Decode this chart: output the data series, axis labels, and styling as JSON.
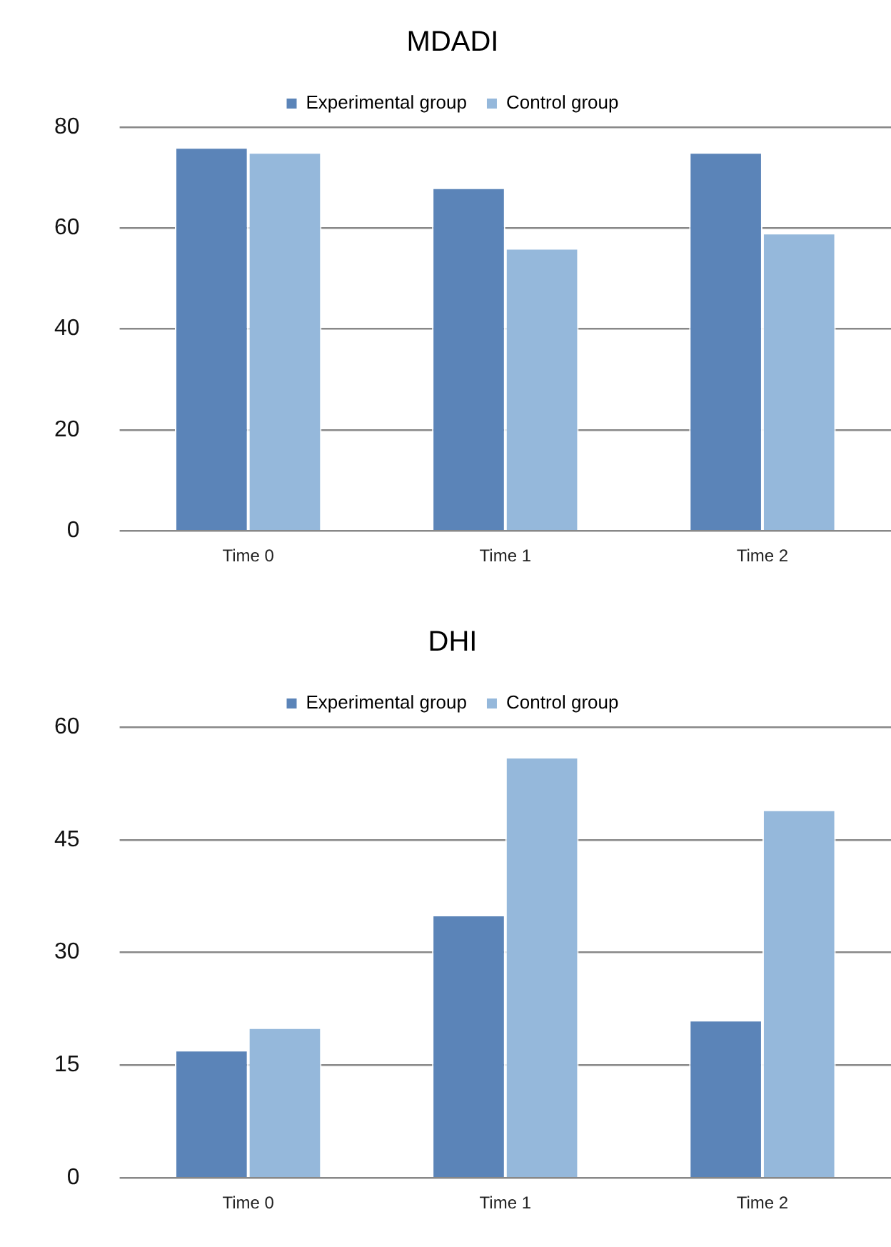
{
  "chart_data": [
    {
      "type": "bar",
      "title": "MDADI",
      "categories": [
        "Time 0",
        "Time 1",
        "Time 2"
      ],
      "series": [
        {
          "name": "Experimental group",
          "color": "#5b84b8",
          "values": [
            76,
            68,
            75
          ]
        },
        {
          "name": "Control group",
          "color": "#95b8db",
          "values": [
            75,
            56,
            59
          ]
        }
      ],
      "ylim": [
        0,
        80
      ],
      "yticks": [
        0,
        20,
        40,
        60,
        80
      ],
      "grid": "y",
      "legend": "top"
    },
    {
      "type": "bar",
      "title": "DHI",
      "categories": [
        "Time 0",
        "Time 1",
        "Time 2"
      ],
      "series": [
        {
          "name": "Experimental group",
          "color": "#5b84b8",
          "values": [
            17,
            35,
            21
          ]
        },
        {
          "name": "Control group",
          "color": "#95b8db",
          "values": [
            20,
            56,
            49
          ]
        }
      ],
      "ylim": [
        0,
        60
      ],
      "yticks": [
        0,
        15,
        30,
        45,
        60
      ],
      "grid": "y",
      "legend": "top"
    }
  ]
}
